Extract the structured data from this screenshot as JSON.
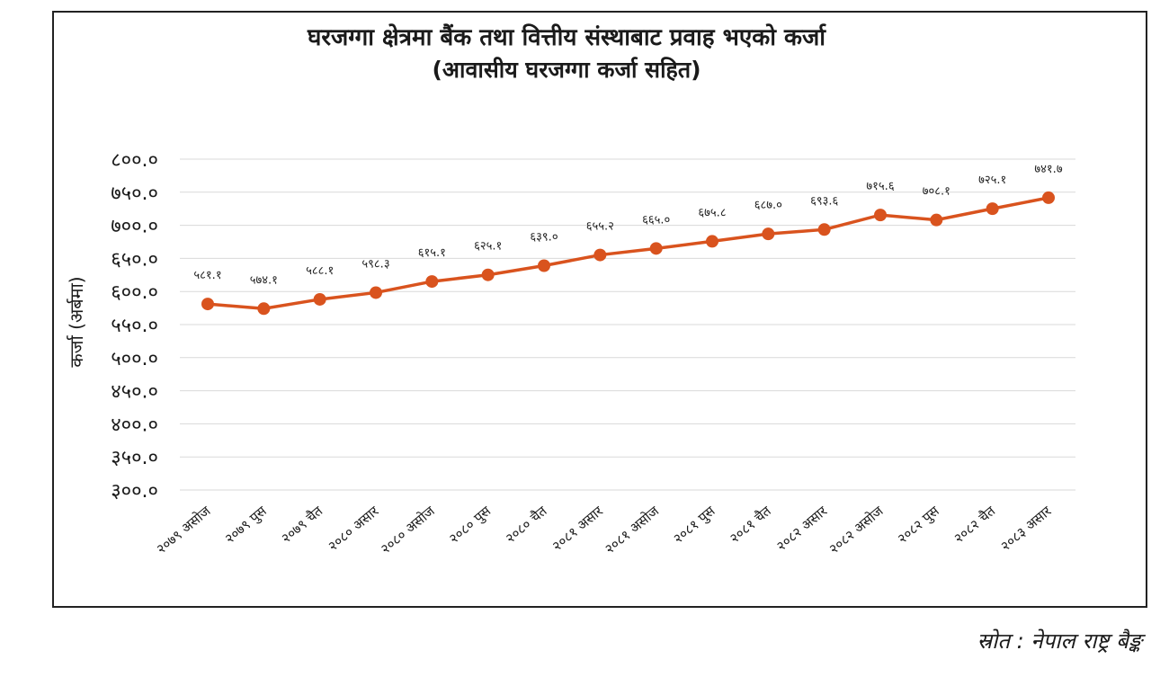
{
  "chart_data": {
    "type": "line",
    "title": "घरजग्गा क्षेत्रमा बैंक तथा वित्तीय संस्थाबाट प्रवाह भएको कर्जा",
    "subtitle": "(आवासीय घरजग्गा कर्जा सहित)",
    "ylabel": "कर्जा (अर्बमा)",
    "xlabel": "",
    "ylim": [
      300,
      800
    ],
    "yticks": [
      "३००.०",
      "३५०.०",
      "४००.०",
      "४५०.०",
      "५००.०",
      "५५०.०",
      "६००.०",
      "६५०.०",
      "७००.०",
      "७५०.०",
      "८००.०"
    ],
    "ytick_values": [
      300,
      350,
      400,
      450,
      500,
      550,
      600,
      650,
      700,
      750,
      800
    ],
    "categories": [
      "२०७९ असोज",
      "२०७९ पुस",
      "२०७९ चैत",
      "२०८० असार",
      "२०८० असोज",
      "२०८० पुस",
      "२०८० चैत",
      "२०८१ असार",
      "२०८१ असोज",
      "२०८१ पुस",
      "२०८१ चैत",
      "२०८२ असार",
      "२०८२ असोज",
      "२०८२ पुस",
      "२०८२ चैत",
      "२०८३ असार"
    ],
    "values": [
      581.1,
      574.1,
      588.1,
      598.3,
      615.1,
      625.1,
      639.0,
      655.2,
      665.0,
      675.8,
      687.0,
      693.6,
      715.6,
      708.1,
      725.1,
      741.7
    ],
    "value_labels": [
      "५८१.१",
      "५७४.१",
      "५८८.१",
      "५९८.३",
      "६१५.१",
      "६२५.१",
      "६३९.०",
      "६५५.२",
      "६६५.०",
      "६७५.८",
      "६८७.०",
      "६९३.६",
      "७१५.६",
      "७०८.१",
      "७२५.१",
      "७४१.७"
    ],
    "series": [
      {
        "values": [
          581.1,
          574.1,
          588.1,
          598.3,
          615.1,
          625.1,
          639.0,
          655.2,
          665.0,
          675.8,
          687.0,
          693.6,
          715.6,
          708.1,
          725.1,
          741.7
        ]
      }
    ],
    "grid": true,
    "line_color": "#d9531e"
  },
  "source_text": "स्रोत : नेपाल राष्ट्र बैङ्क"
}
